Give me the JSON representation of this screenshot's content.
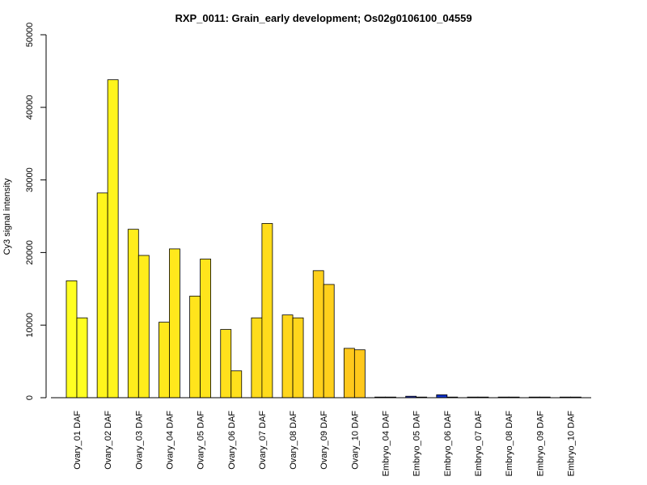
{
  "chart_data": {
    "type": "bar",
    "title": "RXP_0011: Grain_early development; Os02g0106100_04559",
    "ylabel": "Cy3 signal intensity",
    "xlabel": "",
    "ylim": [
      0,
      50000
    ],
    "yticks": [
      0,
      10000,
      20000,
      30000,
      40000,
      50000
    ],
    "grid": false,
    "legend": "none",
    "categories": [
      "Ovary_01 DAF",
      "Ovary_02 DAF",
      "Ovary_03 DAF",
      "Ovary_04 DAF",
      "Ovary_05 DAF",
      "Ovary_06 DAF",
      "Ovary_07 DAF",
      "Ovary_08 DAF",
      "Ovary_09 DAF",
      "Ovary_10 DAF",
      "Embryo_04 DAF",
      "Embryo_05 DAF",
      "Embryo_06 DAF",
      "Embryo_07 DAF",
      "Embryo_08 DAF",
      "Embryo_09 DAF",
      "Embryo_10 DAF"
    ],
    "series": [
      {
        "values": [
          16100,
          28200,
          23200,
          10400,
          14000,
          9400,
          11000,
          11400,
          17500,
          6800,
          80,
          200,
          400,
          60,
          60,
          60,
          60
        ]
      },
      {
        "values": [
          11000,
          43800,
          19600,
          20500,
          19100,
          3700,
          24000,
          11000,
          15600,
          6600,
          60,
          80,
          80,
          60,
          60,
          60,
          60
        ]
      }
    ],
    "bar_colors": [
      "#ffff22",
      "#fff51c",
      "#ffed1c",
      "#ffe81c",
      "#ffe41c",
      "#ffe01c",
      "#ffdc1c",
      "#ffd61c",
      "#ffd01c",
      "#ffc81c",
      "#2233bb",
      "#2233bb",
      "#1133cc",
      "#2233bb",
      "#2233bb",
      "#2233bb",
      "#2233bb"
    ]
  }
}
